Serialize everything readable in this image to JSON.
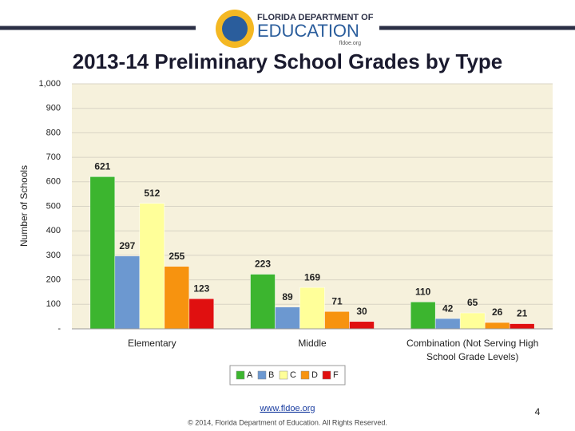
{
  "header": {
    "org_line1": "FLORIDA DEPARTMENT OF",
    "org_line2": "EDUCATION",
    "org_site": "fldoe.org"
  },
  "chart_data": {
    "type": "bar",
    "title": "2013-14 Preliminary School Grades by Type",
    "y_label": "Number of Schools",
    "categories": [
      "Elementary",
      "Middle",
      "Combination (Not Serving High School Grade Levels)"
    ],
    "series": [
      {
        "name": "A",
        "color": "#3cb52f",
        "values": [
          621,
          223,
          110
        ]
      },
      {
        "name": "B",
        "color": "#6c98d0",
        "values": [
          297,
          89,
          42
        ]
      },
      {
        "name": "C",
        "color": "#ffff99",
        "values": [
          512,
          169,
          65
        ]
      },
      {
        "name": "D",
        "color": "#f7930f",
        "values": [
          255,
          71,
          26
        ]
      },
      {
        "name": "F",
        "color": "#e01010",
        "values": [
          123,
          30,
          21
        ]
      }
    ],
    "ylim": [
      0,
      1000
    ],
    "yticks": [
      {
        "value": 0,
        "label": "-"
      },
      100,
      200,
      300,
      400,
      500,
      600,
      700,
      800,
      900,
      {
        "value": 1000,
        "label": "1,000"
      }
    ],
    "grid": true,
    "legend": "bottom",
    "background": "#f6f1dc"
  },
  "footer": {
    "url": "www.fldoe.org",
    "copyright": "© 2014, Florida Department of Education. All Rights Reserved.",
    "page_number": "4"
  }
}
